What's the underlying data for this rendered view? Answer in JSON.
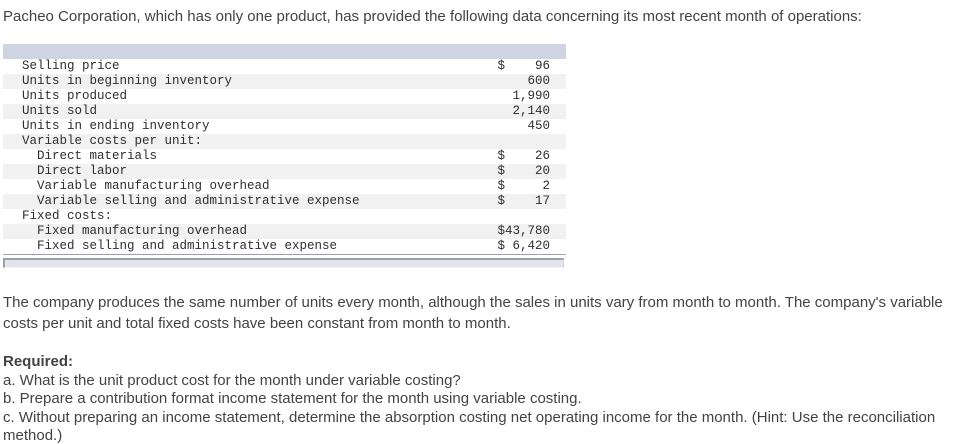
{
  "intro": "Pacheo Corporation, which has only one product, has provided the following data concerning its most recent month of operations:",
  "table": {
    "rows": [
      {
        "label": "  Selling price",
        "amount": "$    96"
      },
      {
        "label": "  Units in beginning inventory",
        "amount": "    600"
      },
      {
        "label": "  Units produced",
        "amount": "  1,990"
      },
      {
        "label": "  Units sold",
        "amount": "  2,140"
      },
      {
        "label": "  Units in ending inventory",
        "amount": "    450"
      },
      {
        "label": "  Variable costs per unit:",
        "amount": ""
      },
      {
        "label": "    Direct materials",
        "amount": "$    26"
      },
      {
        "label": "    Direct labor",
        "amount": "$    20"
      },
      {
        "label": "    Variable manufacturing overhead",
        "amount": "$     2"
      },
      {
        "label": "    Variable selling and administrative expense",
        "amount": "$    17"
      },
      {
        "label": "  Fixed costs:",
        "amount": ""
      },
      {
        "label": "    Fixed manufacturing overhead",
        "amount": "$43,780"
      },
      {
        "label": "    Fixed selling and administrative expense",
        "amount": "$ 6,420"
      }
    ]
  },
  "paragraph": "The company produces the same number of units every month, although the sales in units vary from month to month. The company's variable costs per unit and total fixed costs have been constant from month to month.",
  "required": {
    "heading": "Required:",
    "items": [
      "a. What is the unit product cost for the month under variable costing?",
      "b. Prepare a contribution format income statement for the month using variable costing.",
      "c. Without preparing an income statement, determine the absorption costing net operating income for the month. (Hint: Use the reconciliation method.)"
    ]
  },
  "colors": {
    "header_band": "#ced4e2",
    "row_stripe": "#f1f1f2",
    "scrollbar_fill": "#e2e5ee",
    "scrollbar_border": "#9aa0ac",
    "body_text": "#434343"
  }
}
